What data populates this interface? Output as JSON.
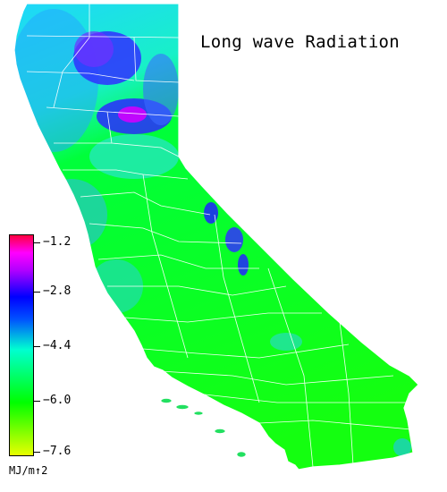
{
  "title": "Long wave Radiation",
  "legend": {
    "units": "MJ/m↑2",
    "ticks": [
      {
        "value": -1.2,
        "label": "−1.2"
      },
      {
        "value": -2.8,
        "label": "−2.8"
      },
      {
        "value": -4.4,
        "label": "−4.4"
      },
      {
        "value": -6.0,
        "label": "−6.0"
      },
      {
        "value": -7.6,
        "label": "−7.6"
      }
    ],
    "range": [
      -7.6,
      -1.2
    ],
    "colors": [
      "#e8ff00",
      "#00ff00",
      "#00ffd0",
      "#0000ff",
      "#b000ff",
      "#ff00ff",
      "#ff0040"
    ]
  },
  "map": {
    "region": "California",
    "dominant_color": "#00ff00",
    "north_color": "#22d8ff",
    "mountain_color": "#2a2aff",
    "peak_color": "#c000ff",
    "border_color": "#ffffff"
  }
}
